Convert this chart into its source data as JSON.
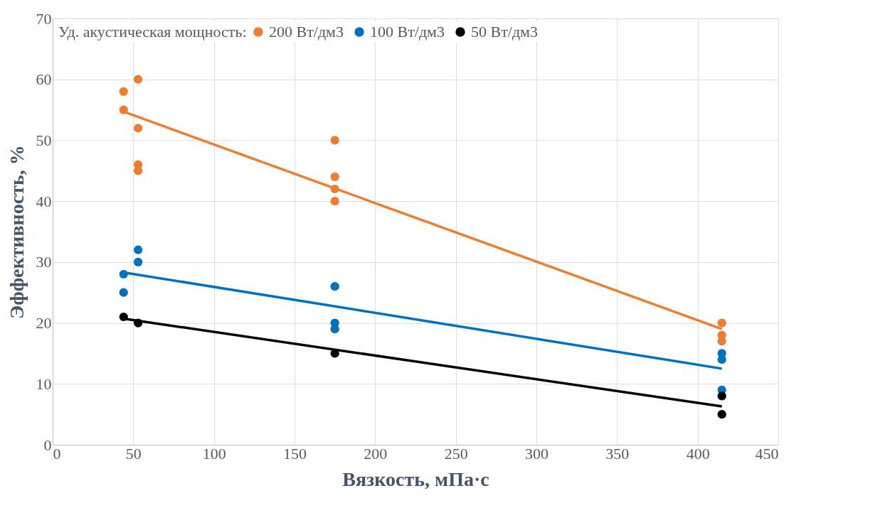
{
  "chart_data": {
    "type": "scatter",
    "xlabel": "Вязкость, мПа·с",
    "ylabel": "Эффективность, %",
    "legend_title": "Уд. акустическая мощность:",
    "legend": "top left",
    "grid": true,
    "marker": "circle",
    "xlim": [
      0,
      450
    ],
    "xticks": [
      0,
      50,
      100,
      150,
      200,
      250,
      300,
      350,
      400,
      450
    ],
    "ylim": [
      0,
      70
    ],
    "yticks": [
      0,
      10,
      20,
      30,
      40,
      50,
      60,
      70
    ],
    "series": [
      {
        "name": "200 Вт/дм3",
        "color": "#ed7d31",
        "x": [
          44,
          44,
          53,
          53,
          53,
          53,
          175,
          175,
          175,
          175,
          415,
          415,
          415
        ],
        "values": [
          58,
          55,
          60,
          52,
          46,
          45,
          50,
          44,
          42,
          40,
          20,
          18,
          17
        ]
      },
      {
        "name": "100 Вт/дм3",
        "color": "#0070c0",
        "x": [
          44,
          44,
          53,
          53,
          175,
          175,
          175,
          415,
          415,
          415
        ],
        "values": [
          28,
          25,
          32,
          30,
          26,
          20,
          19,
          15,
          14,
          9
        ]
      },
      {
        "name": "50 Вт/дм3",
        "color": "#000000",
        "x": [
          44,
          53,
          175,
          415,
          415
        ],
        "values": [
          21,
          20,
          15,
          8,
          5
        ]
      },
      {
        "type": "line",
        "marker": "none",
        "color": "#ed7d31",
        "x": [
          44,
          415
        ],
        "values": [
          54.7,
          19
        ]
      },
      {
        "type": "line",
        "marker": "none",
        "color": "#0070c0",
        "x": [
          44,
          415
        ],
        "values": [
          28.3,
          12.5
        ]
      },
      {
        "type": "line",
        "marker": "none",
        "color": "#000000",
        "x": [
          44,
          415
        ],
        "values": [
          20.7,
          6.3
        ]
      }
    ]
  }
}
